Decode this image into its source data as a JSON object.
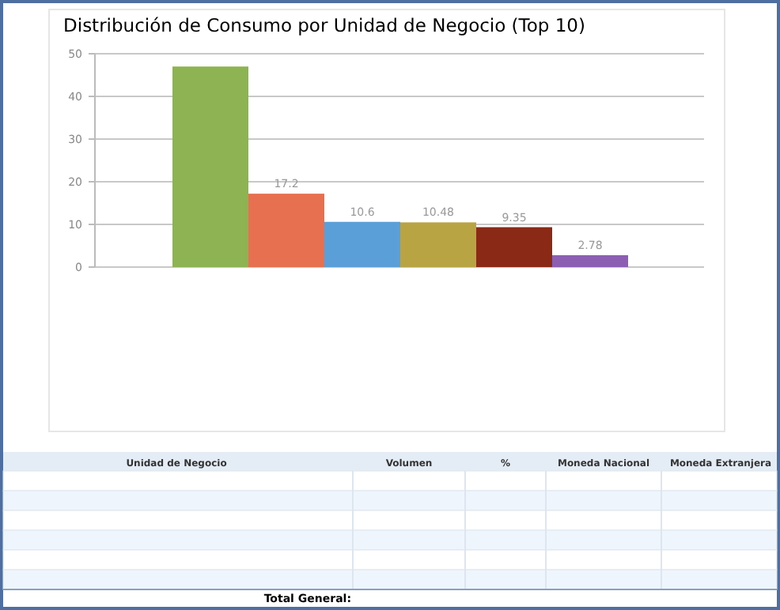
{
  "chart_data": {
    "type": "bar",
    "title": "Distribución  de  Consumo  por  Unidad de Negocio  (Top 10)",
    "categories": [
      null,
      null,
      null,
      null,
      null,
      null
    ],
    "values": [
      47,
      17.2,
      10.6,
      10.48,
      9.35,
      2.78
    ],
    "value_labels": [
      null,
      "17.2",
      "10.6",
      "10.48",
      "9.35",
      "2.78"
    ],
    "colors": [
      "#8db352",
      "#e6704f",
      "#5b9fd9",
      "#b9a444",
      "#8a2a16",
      "#8c5fb3"
    ],
    "ylim": [
      0,
      50
    ],
    "yticks": [
      0,
      10,
      20,
      30,
      40,
      50
    ],
    "grid": "y",
    "annotations": [
      "Unidad de Negocio",
      "Volumen",
      "%",
      "Moneda Nacional",
      "Moneda Extranjera",
      "Total General:"
    ]
  }
}
